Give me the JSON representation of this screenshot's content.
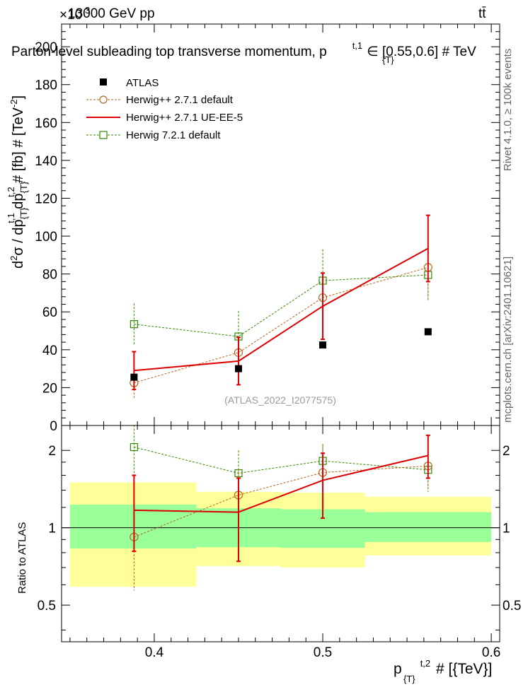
{
  "header": {
    "energy_label": "13000 GeV pp",
    "process_label": "tt̄",
    "exponent_label": "×10",
    "exponent_power": "3"
  },
  "side_text": {
    "rivet": "Rivet 4.1.0, ≥ 100k events",
    "mcplots": "mcplots.cern.ch [arXiv:2401.10621]"
  },
  "chart_data": [
    {
      "type": "line",
      "title": "Parton-level subleading top transverse momentum, p_{T}^{t,1} ∈ [0.55,0.6] # TeV",
      "title_parts": {
        "main": "Parton-level subleading top transverse momentum, p",
        "sub": "{T}",
        "sup": "t,1",
        "tail": "∈ [0.55,0.6] # TeV"
      },
      "ylabel": "d²σ / dp_{T}^{t,1} dp_{T}^{t,2} # [fb] # [TeV⁻²]",
      "ylabel_parts": {
        "d": "d",
        "s2": "2",
        "mid1": "σ / dp",
        "sub1": "{T}",
        "sup1": "t,1",
        "mid2": " dp",
        "sub2": "{T}",
        "sup2": "t,2",
        "tail": " # [fb] # [TeV",
        "sup3": "-2",
        "end": "]"
      },
      "watermark": "(ATLAS_2022_I2077575)",
      "xlim": [
        0.345,
        0.605
      ],
      "ylim": [
        0,
        212
      ],
      "y_ticks": [
        0,
        20,
        40,
        60,
        80,
        100,
        120,
        140,
        160,
        180,
        200
      ],
      "y_tick_labels": [
        "0",
        "20",
        "40",
        "60",
        "80",
        "100",
        "120",
        "140",
        "160",
        "180",
        "200"
      ],
      "legend": [
        {
          "name": "ATLAS",
          "marker": "square-filled",
          "color": "#000000"
        },
        {
          "name": "Herwig++ 2.7.1 default",
          "marker": "circle-open",
          "color": "#b5651d"
        },
        {
          "name": "Herwig++ 2.7.1 UE-EE-5",
          "marker": "line",
          "color": "#dd0000"
        },
        {
          "name": "Herwig 7.2.1 default",
          "marker": "square-open",
          "color": "#338800"
        }
      ],
      "series": [
        {
          "name": "ATLAS",
          "x": [
            0.388,
            0.45,
            0.5,
            0.5625
          ],
          "y": [
            25.5,
            30,
            42.5,
            49.5
          ]
        },
        {
          "name": "Herwig++ 2.7.1 default",
          "x": [
            0.388,
            0.45,
            0.5,
            0.5625
          ],
          "y": [
            22.5,
            38.5,
            67.5,
            83.5
          ],
          "err": [
            8,
            8,
            12,
            16
          ]
        },
        {
          "name": "Herwig++ 2.7.1 UE-EE-5",
          "x": [
            0.388,
            0.45,
            0.5,
            0.5625
          ],
          "y": [
            29,
            34,
            63,
            93.5
          ],
          "err": [
            10,
            12.5,
            17.5,
            17.5
          ],
          "xedges": [
            0.35,
            0.425,
            0.475,
            0.525,
            0.6
          ]
        },
        {
          "name": "Herwig 7.2.1 default",
          "x": [
            0.388,
            0.45,
            0.5,
            0.5625
          ],
          "y": [
            53.5,
            47,
            76.5,
            79.5
          ],
          "err": [
            11,
            13.5,
            16.5,
            14
          ]
        }
      ]
    },
    {
      "type": "line",
      "ylabel": "Ratio to ATLAS",
      "xlabel": "p_{T}^{t,2} # [{TeV}]",
      "xlabel_parts": {
        "main": "p",
        "sub": "{T}",
        "sup": "t,2",
        "tail": " # [{TeV}]"
      },
      "xlim": [
        0.345,
        0.605
      ],
      "ylim": [
        0.36,
        2.5
      ],
      "y_scale": "log",
      "y_major_ticks": [
        0.5,
        1,
        2
      ],
      "y_tick_labels": [
        "0.5",
        "1",
        "2"
      ],
      "x_major_ticks": [
        0.4,
        0.5,
        0.6
      ],
      "x_tick_labels": [
        "0.4",
        "0.5",
        "0.6"
      ],
      "bands": [
        {
          "x0": 0.35,
          "x1": 0.425,
          "yellow": [
            0.59,
            1.5
          ],
          "green": [
            0.83,
            1.23
          ]
        },
        {
          "x0": 0.425,
          "x1": 0.475,
          "yellow": [
            0.71,
            1.38
          ],
          "green": [
            0.84,
            1.19
          ]
        },
        {
          "x0": 0.475,
          "x1": 0.525,
          "yellow": [
            0.7,
            1.37
          ],
          "green": [
            0.835,
            1.18
          ]
        },
        {
          "x0": 0.525,
          "x1": 0.6,
          "yellow": [
            0.78,
            1.32
          ],
          "green": [
            0.88,
            1.15
          ]
        }
      ],
      "series": [
        {
          "name": "Herwig++ 2.7.1 default",
          "x": [
            0.388,
            0.45,
            0.5,
            0.5625
          ],
          "y": [
            0.92,
            1.34,
            1.64,
            1.74
          ],
          "err_low": [
            0.35,
            0.35,
            0.39,
            0.29
          ],
          "err_high": [
            0.35,
            0.35,
            0.45,
            0.42
          ]
        },
        {
          "name": "Herwig++ 2.7.1 UE-EE-5",
          "x": [
            0.388,
            0.45,
            0.5,
            0.5625
          ],
          "y": [
            1.17,
            1.15,
            1.53,
            1.91
          ],
          "err_low": [
            0.36,
            0.41,
            0.44,
            0.35
          ],
          "err_high": [
            0.43,
            0.41,
            0.42,
            0.38
          ],
          "xedges": [
            0.35,
            0.425,
            0.475,
            0.525,
            0.6
          ]
        },
        {
          "name": "Herwig 7.2.1 default",
          "x": [
            0.388,
            0.45,
            0.5,
            0.5625
          ],
          "y": [
            2.06,
            1.63,
            1.82,
            1.68
          ],
          "err_low": [
            0.45,
            0.45,
            0.37,
            0.3
          ],
          "err_high": [
            0.45,
            0.37,
            0.3,
            0.36
          ]
        }
      ]
    }
  ]
}
